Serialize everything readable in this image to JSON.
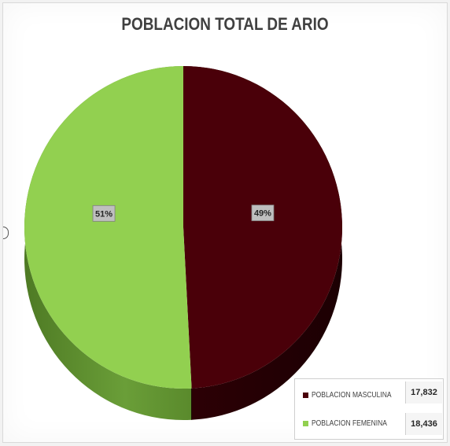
{
  "chart_data": {
    "type": "pie",
    "style": "3d",
    "title": "POBLACION TOTAL DE ARIO",
    "slices": [
      {
        "name": "POBLACION MASCULINA",
        "value": 17832,
        "value_label": "17,832",
        "percent_label": "49%",
        "color": "#4a0009",
        "side_color": "#2a0005"
      },
      {
        "name": "POBLACION FEMENINA",
        "value": 18436,
        "value_label": "18,436",
        "percent_label": "51%",
        "color": "#92d050",
        "side_color": "#5f8f2e"
      }
    ],
    "legend_position": "bottom-right"
  }
}
